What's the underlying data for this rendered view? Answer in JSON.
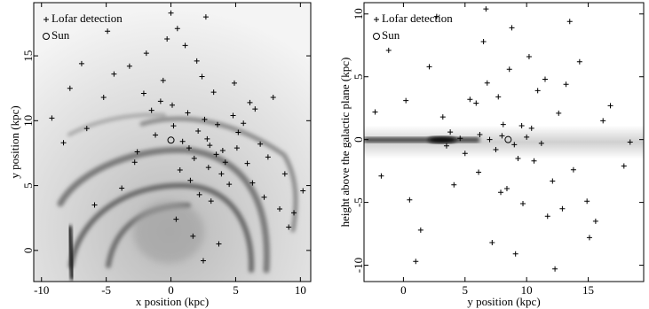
{
  "chart_data": [
    {
      "type": "scatter",
      "xlabel": "x position (kpc)",
      "ylabel": "y position (kpc)",
      "xlim": [
        -10.6,
        10.8
      ],
      "ylim": [
        -2.4,
        19.1
      ],
      "xticks": [
        -10,
        -5,
        0,
        5,
        10
      ],
      "yticks": [
        0,
        5,
        10,
        15
      ],
      "legend": "upper left",
      "series": [
        {
          "name": "Lofar detection",
          "marker": "+",
          "color": "#000000",
          "x": [
            -3.2,
            -2.1,
            -1.5,
            -0.8,
            0.2,
            0.9,
            1.4,
            2.1,
            2.8,
            3.5,
            4.2,
            5.1,
            6.3,
            7.2,
            8.4,
            9.1,
            -6.5,
            -5.2,
            -4.4,
            -7.8,
            -9.2,
            1.1,
            2.4,
            3.3,
            0.5,
            -0.3,
            4.8,
            5.6,
            6.9,
            1.8,
            2.9,
            3.9,
            -1.2,
            -2.6,
            0.7,
            1.5,
            2.2,
            3.1,
            4.5,
            5.9,
            7.5,
            8.8,
            10.2,
            -3.8,
            -5.9,
            0.1,
            1.3,
            2.6,
            3.6,
            4.9,
            6.1,
            -0.6,
            -1.9,
            2.0,
            3.0,
            4.0,
            5.2,
            6.5,
            -4.9,
            -8.3,
            0.4,
            1.7,
            2.5,
            3.7,
            9.5,
            -2.8,
            7.9,
            -6.9,
            0.0,
            2.7
          ],
          "y": [
            14.2,
            12.1,
            10.8,
            11.5,
            9.6,
            8.4,
            7.9,
            9.2,
            8.6,
            7.4,
            6.8,
            7.9,
            5.2,
            4.1,
            3.2,
            1.8,
            9.4,
            11.8,
            13.6,
            12.5,
            10.2,
            15.8,
            13.4,
            12.2,
            17.1,
            16.3,
            10.4,
            9.8,
            8.2,
            7.1,
            6.4,
            5.9,
            8.9,
            7.6,
            6.2,
            5.4,
            4.3,
            3.8,
            5.1,
            6.7,
            7.2,
            5.9,
            4.6,
            4.8,
            3.5,
            11.2,
            10.6,
            10.1,
            9.7,
            12.9,
            11.4,
            13.1,
            15.2,
            14.6,
            8.1,
            7.7,
            9.1,
            10.9,
            16.9,
            8.3,
            2.4,
            1.1,
            -0.8,
            0.5,
            2.9,
            6.8,
            11.8,
            14.4,
            18.3,
            18.0
          ]
        },
        {
          "name": "Sun",
          "marker": "o",
          "color": "#000000",
          "x": [
            0
          ],
          "y": [
            8.5
          ]
        }
      ]
    },
    {
      "type": "scatter",
      "xlabel": "y position (kpc)",
      "ylabel": "height above the galactic plane (kpc)",
      "xlim": [
        -3.2,
        19.5
      ],
      "ylim": [
        -11.3,
        10.9
      ],
      "xticks": [
        0,
        5,
        10,
        15
      ],
      "yticks": [
        -10,
        -5,
        0,
        5,
        10
      ],
      "legend": "upper left",
      "series": [
        {
          "name": "Lofar detection",
          "marker": "+",
          "color": "#000000",
          "x": [
            6.2,
            7.5,
            8.1,
            9.3,
            10.4,
            11.2,
            12.6,
            13.8,
            5.4,
            4.1,
            3.2,
            6.8,
            7.9,
            8.6,
            9.7,
            10.9,
            12.1,
            14.3,
            15.6,
            16.8,
            17.9,
            2.1,
            0.5,
            -1.2,
            -2.3,
            1.4,
            3.8,
            5.0,
            6.5,
            7.2,
            8.8,
            9.1,
            10.2,
            11.7,
            13.2,
            14.9,
            16.2,
            18.4,
            4.6,
            5.9,
            6.1,
            7.7,
            8.4,
            9.6,
            10.6,
            11.5,
            12.9,
            3.5,
            2.7,
            1.0,
            0.2,
            -1.8,
            7.0,
            8.0,
            9.0,
            10.0,
            6.7,
            12.3,
            13.5,
            15.1
          ],
          "y": [
            0.4,
            -0.8,
            1.2,
            -1.5,
            0.9,
            -0.3,
            2.1,
            -2.4,
            3.2,
            -3.6,
            1.8,
            4.5,
            -4.2,
            5.6,
            -5.1,
            3.9,
            -3.3,
            6.2,
            -6.5,
            2.7,
            -2.1,
            5.8,
            -4.8,
            7.1,
            2.2,
            -7.2,
            0.6,
            -1.1,
            7.8,
            -8.2,
            8.9,
            -9.1,
            6.6,
            -6.1,
            4.4,
            -4.9,
            1.5,
            -0.2,
            0.1,
            2.9,
            -2.6,
            3.4,
            -3.9,
            1.1,
            -1.7,
            4.8,
            -5.5,
            -0.5,
            9.8,
            -9.7,
            3.1,
            -2.9,
            0.0,
            0.3,
            -0.4,
            0.2,
            10.4,
            -10.3,
            9.4,
            -7.8
          ]
        },
        {
          "name": "Sun",
          "marker": "o",
          "color": "#000000",
          "x": [
            8.5
          ],
          "y": [
            0
          ]
        }
      ]
    }
  ]
}
